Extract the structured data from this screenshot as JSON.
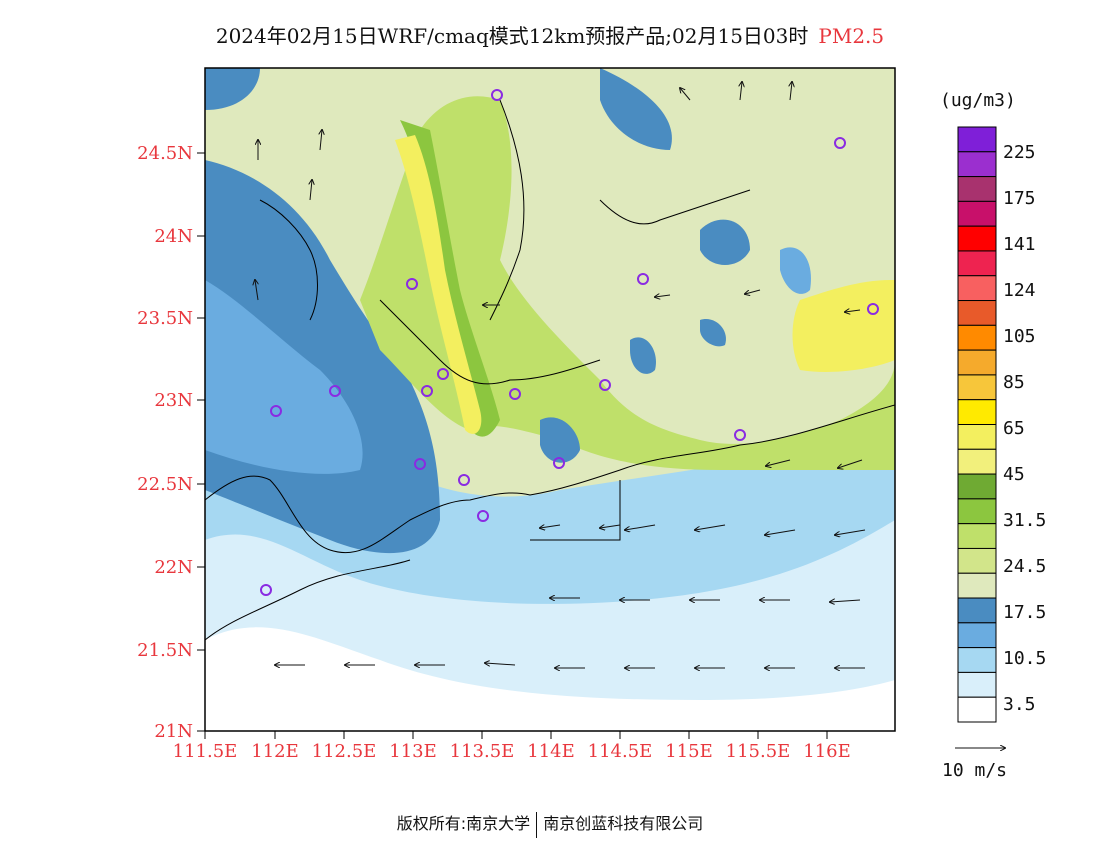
{
  "title": {
    "main": "2024年02月15日WRF/cmaq模式12km预报产品;02月15日03时",
    "species": "PM2.5"
  },
  "colors": {
    "species": "#e8373d",
    "axis_labels": "#e8373d",
    "land_border": "#000000",
    "sea_lightest": "#ffffff"
  },
  "axes": {
    "y_ticks": [
      "24.5N",
      "24N",
      "23.5N",
      "23N",
      "22.5N",
      "22N",
      "21.5N",
      "21N"
    ],
    "x_ticks": [
      "111.5E",
      "112E",
      "112.5E",
      "113E",
      "113.5E",
      "114E",
      "114.5E",
      "115E",
      "115.5E",
      "116E"
    ]
  },
  "legend": {
    "unit": "(ug/m3)",
    "labels": [
      "225",
      "175",
      "141",
      "124",
      "105",
      "85",
      "65",
      "45",
      "31.5",
      "24.5",
      "17.5",
      "10.5",
      "3.5"
    ],
    "colors": [
      "#7f1fd8",
      "#9b2fcf",
      "#a8326e",
      "#c8106a",
      "#ff0000",
      "#ee2350",
      "#f86060",
      "#e85a2a",
      "#ff8a00",
      "#f5aa2c",
      "#f7c63a",
      "#ffea00",
      "#f3ef5f",
      "#f2f07c",
      "#6faa33",
      "#8cc63f",
      "#bfe06a",
      "#d2e58a",
      "#dfe9bd",
      "#4a8cc1",
      "#6aace0",
      "#a6d8f2",
      "#d9effa",
      "#ffffff"
    ]
  },
  "vector_key": {
    "label": "10 m/s"
  },
  "footer": {
    "left": "版权所有:南京大学",
    "right": "南京创蓝科技有限公司"
  }
}
